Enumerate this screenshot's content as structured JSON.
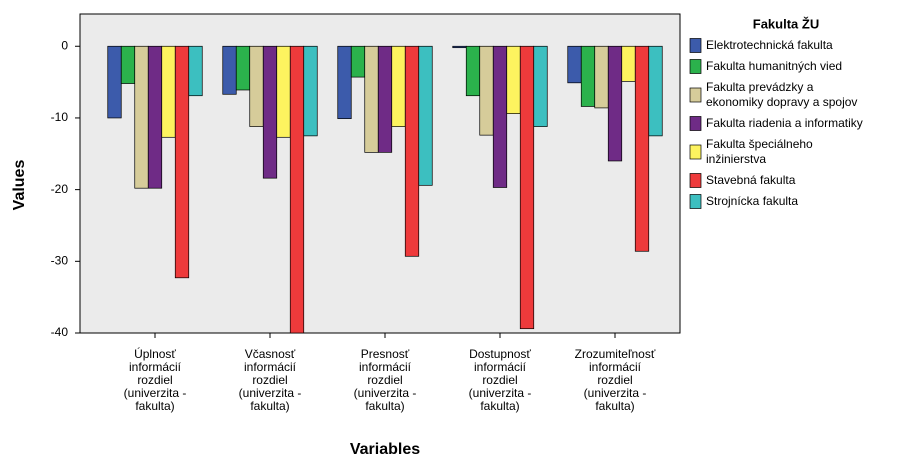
{
  "chart_data": {
    "type": "bar",
    "x_label": "Variables",
    "y_label": "Values",
    "legend_title": "Fakulta ŽU",
    "legend": "right",
    "grid": false,
    "background": "#ebebeb",
    "categories": [
      "Úplnosť\ninformácií\nrozdiel\n(univerzita -\nfakulta)",
      "Včasnosť\ninformácií\nrozdiel\n(univerzita -\nfakulta)",
      "Presnosť\ninformácií\nrozdiel\n(univerzita -\nfakulta)",
      "Dostupnosť\ninformácií\nrozdiel\n(univerzita -\nfakulta)",
      "Zrozumiteľnosť\ninformácií\nrozdiel\n(univerzita -\nfakulta)"
    ],
    "series": [
      {
        "name": "Elektrotechnická fakulta",
        "color": "#3c5bab",
        "values": [
          -10,
          -6.7,
          -10.1,
          -0.2,
          -5.1
        ]
      },
      {
        "name": "Fakulta humanitných vied",
        "color": "#2bb24c",
        "values": [
          -5.2,
          -6.1,
          -4.3,
          -6.9,
          -8.4
        ]
      },
      {
        "name": "Fakulta prevádzky a\nekonomiky dopravy a spojov",
        "color": "#d6cc9a",
        "values": [
          -19.8,
          -11.2,
          -14.8,
          -12.4,
          -8.6
        ]
      },
      {
        "name": "Fakulta riadenia a informatiky",
        "color": "#6f2b86",
        "values": [
          -19.8,
          -18.4,
          -14.8,
          -19.7,
          -16
        ]
      },
      {
        "name": "Fakulta špeciálneho\ninžinierstva",
        "color": "#fdf35f",
        "values": [
          -12.7,
          -12.7,
          -11.2,
          -9.4,
          -4.9
        ]
      },
      {
        "name": "Stavebná fakulta",
        "color": "#ee3a3b",
        "values": [
          -32.3,
          -40,
          -29.3,
          -39.4,
          -28.6
        ]
      },
      {
        "name": "Strojnícka fakulta",
        "color": "#3cbfc0",
        "values": [
          -6.9,
          -12.5,
          -19.4,
          -11.2,
          -12.5
        ]
      }
    ],
    "ylim": [
      -40,
      4.5
    ],
    "yticks": [
      0,
      -10,
      -20,
      -30,
      -40
    ]
  }
}
